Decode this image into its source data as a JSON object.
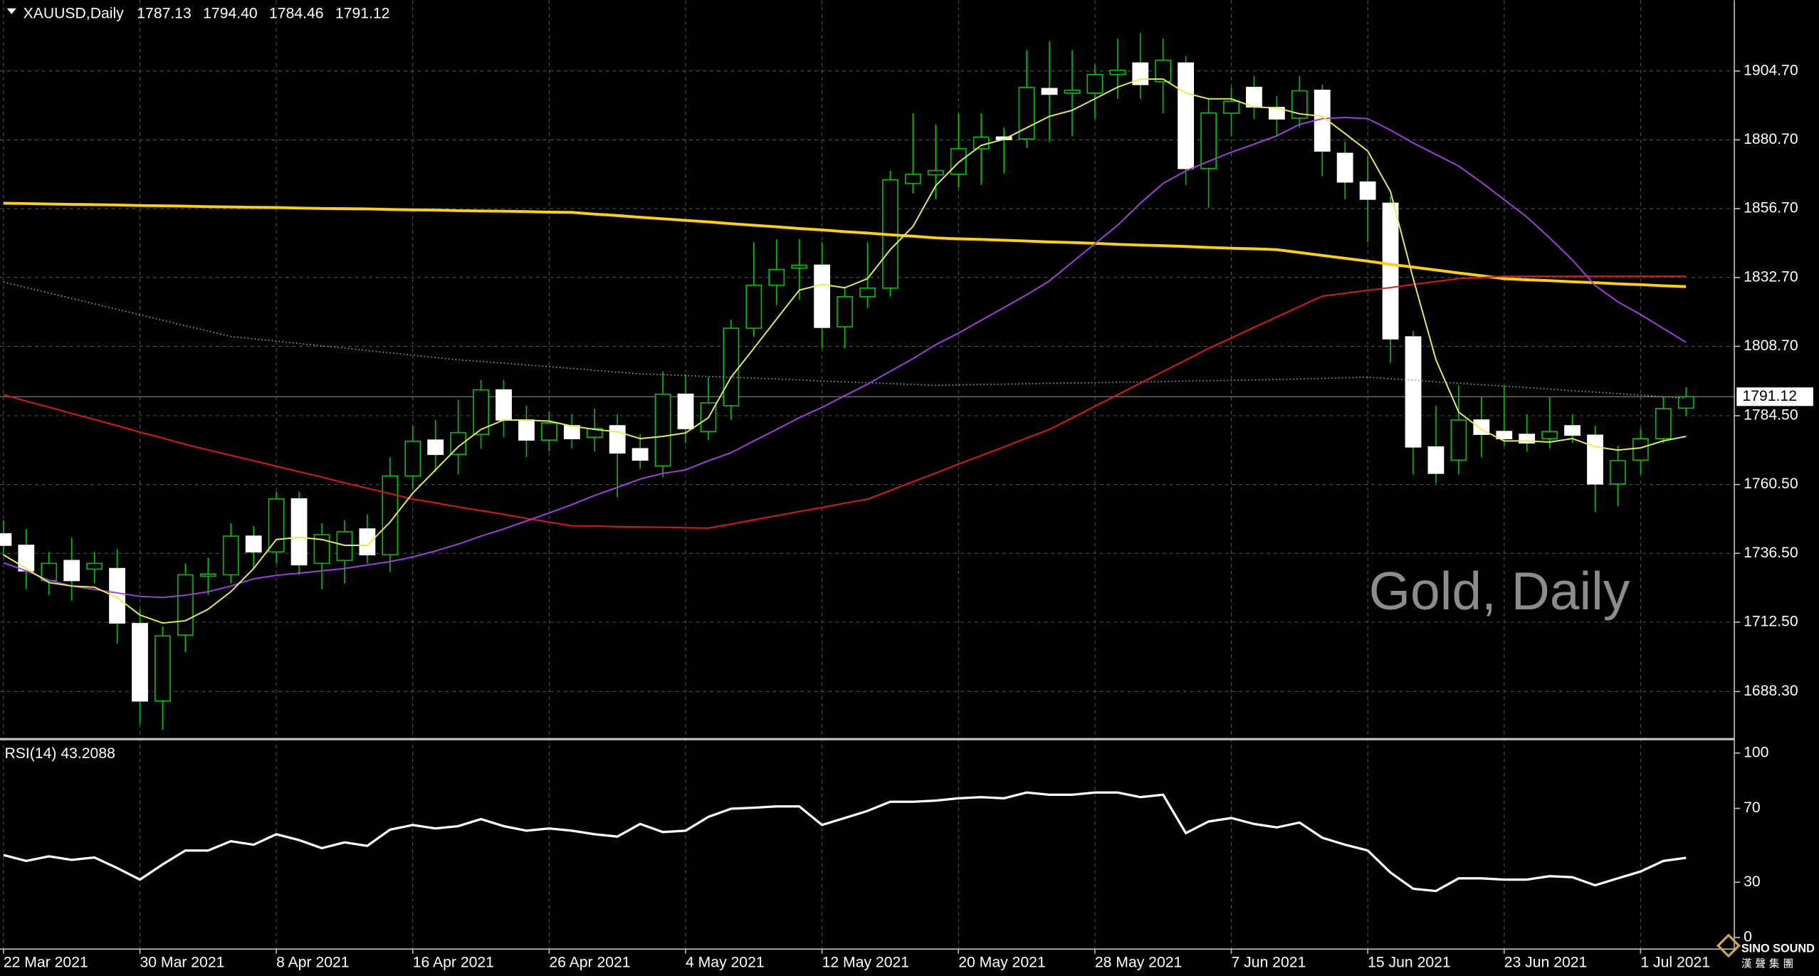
{
  "chart_data": [
    {
      "type": "candlestick",
      "title": "XAUUSD,Daily",
      "header_values": [
        "1787.13",
        "1794.40",
        "1784.46",
        "1791.12"
      ],
      "watermark": "Gold, Daily",
      "categories": [
        "22 Mar 2021",
        null,
        null,
        null,
        null,
        null,
        "30 Mar 2021",
        null,
        null,
        null,
        null,
        null,
        "8 Apr 2021",
        null,
        null,
        null,
        null,
        null,
        "16 Apr 2021",
        null,
        null,
        null,
        null,
        null,
        "26 Apr 2021",
        null,
        null,
        null,
        null,
        null,
        "4 May 2021",
        null,
        null,
        null,
        null,
        null,
        "12 May 2021",
        null,
        null,
        null,
        null,
        null,
        "20 May 2021",
        null,
        null,
        null,
        null,
        null,
        "28 May 2021",
        null,
        null,
        null,
        null,
        null,
        "7 Jun 2021",
        null,
        null,
        null,
        null,
        null,
        "15 Jun 2021",
        null,
        null,
        null,
        null,
        null,
        "23 Jun 2021",
        null,
        null,
        null,
        null,
        null,
        "1 Jul 2021",
        null,
        null
      ],
      "open": [
        1743.3,
        1739.3,
        1727.0,
        1734.0,
        1731.0,
        1731.2,
        1712.0,
        1685.0,
        1708.0,
        1728.5,
        1729.0,
        1742.5,
        1737.0,
        1755.5,
        1733.0,
        1734.0,
        1745.0,
        1736.0,
        1763.5,
        1776.0,
        1771.0,
        1778.0,
        1793.5,
        1783.0,
        1776.0,
        1781.0,
        1777.0,
        1781.0,
        1773.0,
        1767.0,
        1792.0,
        1779.0,
        1788.0,
        1815.0,
        1830.0,
        1836.0,
        1837.0,
        1815.5,
        1826.0,
        1829.0,
        1865.5,
        1868.5,
        1868.7,
        1877.6,
        1881.7,
        1881.0,
        1898.6,
        1897.0,
        1897.0,
        1903.5,
        1907.5,
        1901.0,
        1907.5,
        1870.7,
        1890.0,
        1899.0,
        1892.0,
        1888.3,
        1898.0,
        1876.0,
        1866.0,
        1858.6,
        1812.0,
        1773.6,
        1769.0,
        1783.0,
        1779.0,
        1778.0,
        1776.5,
        1781.0,
        1777.7,
        1760.7,
        1769.0,
        1776.5,
        1787.13
      ],
      "high": [
        1748.0,
        1745.0,
        1737.0,
        1742.0,
        1737.0,
        1738.0,
        1717.0,
        1711.0,
        1733.0,
        1735.0,
        1747.0,
        1746.0,
        1758.0,
        1758.0,
        1747.0,
        1748.0,
        1750.0,
        1770.0,
        1781.0,
        1783.0,
        1790.0,
        1797.0,
        1797.0,
        1788.0,
        1786.0,
        1785.0,
        1787.0,
        1785.0,
        1778.0,
        1800.0,
        1799.0,
        1798.0,
        1818.0,
        1845.0,
        1846.0,
        1846.0,
        1845.0,
        1829.0,
        1845.0,
        1870.0,
        1890.0,
        1886.0,
        1890.0,
        1890.0,
        1885.0,
        1912.0,
        1915.0,
        1912.0,
        1907.0,
        1916.0,
        1918.0,
        1916.0,
        1910.0,
        1895.0,
        1899.0,
        1903.0,
        1896.0,
        1903.0,
        1900.0,
        1880.0,
        1875.0,
        1861.0,
        1814.0,
        1788.0,
        1795.0,
        1791.0,
        1795.0,
        1785.0,
        1791.0,
        1785.0,
        1781.0,
        1774.0,
        1780.0,
        1791.0,
        1794.4
      ],
      "low": [
        1735.5,
        1724.0,
        1722.0,
        1720.0,
        1726.0,
        1705.0,
        1677.0,
        1675.0,
        1702.0,
        1722.0,
        1726.0,
        1731.0,
        1733.0,
        1729.0,
        1724.0,
        1726.0,
        1733.0,
        1730.0,
        1759.0,
        1765.0,
        1764.0,
        1773.0,
        1777.0,
        1770.0,
        1772.0,
        1773.0,
        1772.0,
        1756.0,
        1766.0,
        1763.0,
        1775.0,
        1776.0,
        1783.0,
        1812.0,
        1823.0,
        1825.0,
        1808.0,
        1808.0,
        1822.0,
        1826.0,
        1862.0,
        1860.0,
        1864.0,
        1865.0,
        1869.0,
        1878.0,
        1880.0,
        1882.0,
        1888.0,
        1895.0,
        1895.0,
        1890.0,
        1865.0,
        1857.0,
        1882.0,
        1888.0,
        1882.0,
        1885.0,
        1868.0,
        1860.0,
        1845.0,
        1803.0,
        1764.0,
        1761.0,
        1764.0,
        1770.0,
        1774.0,
        1772.0,
        1773.0,
        1775.0,
        1751.0,
        1753.0,
        1764.0,
        1775.0,
        1784.46
      ],
      "close": [
        1739.3,
        1730.4,
        1733.0,
        1727.0,
        1733.0,
        1712.2,
        1685.0,
        1707.7,
        1729.0,
        1729.3,
        1742.5,
        1737.0,
        1755.5,
        1732.5,
        1743.0,
        1744.0,
        1736.0,
        1763.5,
        1775.6,
        1771.0,
        1778.6,
        1793.5,
        1783.0,
        1776.0,
        1782.0,
        1776.5,
        1780.0,
        1771.5,
        1769.0,
        1792.0,
        1780.0,
        1789.0,
        1815.0,
        1830.0,
        1835.5,
        1837.0,
        1815.3,
        1826.0,
        1829.0,
        1866.8,
        1868.7,
        1870.0,
        1877.6,
        1881.7,
        1880.8,
        1899.0,
        1896.6,
        1898.0,
        1903.5,
        1905.0,
        1900.0,
        1908.5,
        1870.7,
        1890.1,
        1894.2,
        1892.2,
        1888.0,
        1897.8,
        1876.8,
        1866.0,
        1860.0,
        1811.3,
        1773.6,
        1764.4,
        1783.0,
        1778.0,
        1776.5,
        1775.0,
        1779.0,
        1777.7,
        1760.7,
        1768.8,
        1776.5,
        1787.0,
        1791.12
      ],
      "up_color": "#000000",
      "down_color": "#ffffff",
      "wick_color": "#00c000",
      "series": [
        {
          "color": "#9a9a9a",
          "dashed": true,
          "values": [
            1831.1,
            1829.2,
            1827.3,
            1825.4,
            1823.5,
            1821.6,
            1819.7,
            1817.8,
            1815.9,
            1814.0,
            1812.1,
            1811.3,
            1810.5,
            1809.7,
            1808.9,
            1808.1,
            1807.2,
            1806.4,
            1805.6,
            1804.8,
            1804.0,
            1803.4,
            1802.8,
            1802.2,
            1801.6,
            1801.0,
            1800.3,
            1799.7,
            1799.1,
            1798.8,
            1798.5,
            1798.2,
            1797.9,
            1797.6,
            1797.3,
            1797.0,
            1796.6,
            1796.3,
            1796.0,
            1795.7,
            1795.4,
            1795.1,
            1795.2,
            1795.4,
            1795.5,
            1795.6,
            1795.8,
            1795.9,
            1796.0,
            1796.2,
            1796.3,
            1796.4,
            1796.6,
            1796.7,
            1796.8,
            1797.0,
            1797.1,
            1797.3,
            1797.5,
            1797.7,
            1797.9,
            1797.4,
            1796.9,
            1796.3,
            1795.8,
            1795.3,
            1794.8,
            1794.3,
            1793.8,
            1793.2,
            1792.7,
            1792.2,
            1791.7,
            1791.1,
            1790.6
          ]
        },
        {
          "color": "#ffd200",
          "dashed": false,
          "values": [
            1858.6,
            1858.5,
            1858.3,
            1858.2,
            1858.1,
            1858.0,
            1857.8,
            1857.7,
            1857.6,
            1857.4,
            1857.3,
            1857.2,
            1857.1,
            1856.9,
            1856.8,
            1856.7,
            1856.6,
            1856.4,
            1856.3,
            1856.2,
            1856.0,
            1855.9,
            1855.8,
            1855.7,
            1855.5,
            1855.4,
            1854.8,
            1854.3,
            1853.7,
            1853.2,
            1852.6,
            1852.1,
            1851.5,
            1850.9,
            1850.4,
            1849.8,
            1849.3,
            1848.7,
            1848.2,
            1847.6,
            1847.1,
            1846.5,
            1846.2,
            1846.0,
            1845.7,
            1845.4,
            1845.1,
            1844.9,
            1844.6,
            1844.3,
            1844.0,
            1843.8,
            1843.5,
            1843.2,
            1842.9,
            1842.7,
            1842.4,
            1841.4,
            1840.4,
            1839.4,
            1838.4,
            1837.3,
            1836.3,
            1835.3,
            1834.3,
            1833.3,
            1832.3,
            1831.9,
            1831.6,
            1831.2,
            1830.9,
            1830.5,
            1830.2,
            1829.8,
            1829.5
          ]
        },
        {
          "color": "#e01818",
          "dashed": false,
          "values": [
            1791.8,
            1789.6,
            1787.5,
            1785.3,
            1783.2,
            1781.0,
            1778.8,
            1776.7,
            1774.5,
            1772.6,
            1770.7,
            1768.8,
            1766.9,
            1765.0,
            1763.1,
            1761.1,
            1759.2,
            1757.3,
            1755.4,
            1754.1,
            1752.7,
            1751.4,
            1750.1,
            1748.7,
            1747.4,
            1746.1,
            1746.0,
            1745.8,
            1745.7,
            1745.6,
            1745.4,
            1745.3,
            1746.7,
            1748.2,
            1749.6,
            1751.1,
            1752.5,
            1754.0,
            1755.4,
            1758.4,
            1761.5,
            1764.5,
            1767.6,
            1770.6,
            1773.6,
            1776.7,
            1779.7,
            1783.7,
            1787.8,
            1791.8,
            1795.9,
            1799.9,
            1803.9,
            1808.0,
            1811.6,
            1815.3,
            1818.9,
            1822.6,
            1826.2,
            1827.2,
            1828.2,
            1829.2,
            1830.3,
            1831.3,
            1832.3,
            1832.7,
            1833.1,
            1833.1,
            1833.1,
            1833.1,
            1833.1,
            1833.1,
            1833.1,
            1833.1,
            1833.1
          ]
        },
        {
          "color": "#a040e0",
          "dashed": false,
          "values": [
            1733.2,
            1730.4,
            1727.1,
            1725.1,
            1723.9,
            1722.7,
            1721.5,
            1721.1,
            1721.9,
            1723.1,
            1725.1,
            1727.6,
            1728.8,
            1729.6,
            1730.4,
            1731.2,
            1732.4,
            1733.6,
            1735.2,
            1737.3,
            1739.7,
            1742.5,
            1745.0,
            1747.8,
            1750.6,
            1753.5,
            1756.7,
            1759.5,
            1762.4,
            1764.4,
            1765.6,
            1768.8,
            1771.6,
            1775.7,
            1779.7,
            1783.8,
            1787.4,
            1791.5,
            1795.5,
            1800.0,
            1804.4,
            1809.3,
            1813.3,
            1817.8,
            1822.2,
            1826.7,
            1831.5,
            1838.0,
            1844.5,
            1850.9,
            1858.6,
            1865.5,
            1869.9,
            1873.2,
            1876.4,
            1879.2,
            1882.1,
            1886.1,
            1888.1,
            1888.5,
            1888.1,
            1884.1,
            1879.6,
            1875.6,
            1871.6,
            1865.9,
            1859.8,
            1853.8,
            1846.5,
            1838.8,
            1829.9,
            1824.2,
            1819.8,
            1814.9,
            1810.1
          ]
        },
        {
          "color": "#e4f050",
          "dashed": false,
          "values": [
            1736.0,
            1731.2,
            1726.3,
            1725.1,
            1724.7,
            1721.1,
            1715.0,
            1712.2,
            1713.0,
            1717.0,
            1723.1,
            1731.2,
            1741.3,
            1742.1,
            1741.3,
            1739.3,
            1739.3,
            1747.4,
            1757.5,
            1765.6,
            1773.7,
            1779.7,
            1783.0,
            1783.0,
            1782.6,
            1780.9,
            1779.7,
            1778.9,
            1776.5,
            1777.3,
            1778.5,
            1783.8,
            1797.9,
            1808.0,
            1818.2,
            1828.3,
            1830.3,
            1829.1,
            1832.3,
            1842.4,
            1850.5,
            1864.7,
            1872.8,
            1878.8,
            1880.9,
            1884.9,
            1888.9,
            1891.0,
            1895.0,
            1899.1,
            1901.9,
            1901.9,
            1897.0,
            1895.0,
            1895.0,
            1892.2,
            1891.8,
            1889.8,
            1888.9,
            1882.9,
            1876.8,
            1862.7,
            1832.3,
            1804.0,
            1785.8,
            1779.7,
            1775.7,
            1775.7,
            1775.3,
            1776.5,
            1773.7,
            1772.5,
            1773.3,
            1775.7,
            1777.3
          ]
        }
      ],
      "current_price": 1791.12,
      "ylim": [
        1672.1,
        1929.4
      ],
      "yticks": [
        {
          "value": 1904.7,
          "label": "1904.70"
        },
        {
          "value": 1880.7,
          "label": "1880.70"
        },
        {
          "value": 1856.7,
          "label": "1856.70"
        },
        {
          "value": 1832.7,
          "label": "1832.70"
        },
        {
          "value": 1808.7,
          "label": "1808.70"
        },
        {
          "value": 1784.5,
          "label": "1784.50"
        },
        {
          "value": 1760.5,
          "label": "1760.50"
        },
        {
          "value": 1736.5,
          "label": "1736.50"
        },
        {
          "value": 1712.5,
          "label": "1712.50"
        },
        {
          "value": 1688.3,
          "label": "1688.30"
        }
      ],
      "grid": true
    },
    {
      "type": "line",
      "title": "RSI(14) 43.2088",
      "series": [
        {
          "color": "#ffffff",
          "values": [
            44.7,
            41.5,
            44.0,
            42.1,
            43.4,
            37.7,
            31.4,
            39.6,
            47.2,
            47.2,
            52.2,
            50.3,
            56.0,
            52.8,
            48.4,
            51.6,
            49.7,
            58.5,
            61.0,
            59.1,
            60.4,
            64.2,
            60.4,
            57.9,
            59.1,
            57.9,
            56.0,
            54.7,
            61.6,
            57.2,
            57.9,
            65.4,
            69.8,
            70.4,
            71.1,
            71.1,
            61.0,
            64.8,
            68.6,
            73.6,
            73.6,
            74.2,
            75.5,
            76.1,
            75.5,
            78.6,
            77.4,
            77.4,
            78.6,
            78.6,
            76.1,
            77.4,
            56.6,
            62.9,
            64.8,
            61.6,
            59.7,
            62.3,
            54.1,
            50.3,
            47.2,
            35.2,
            26.4,
            25.2,
            32.1,
            32.1,
            31.4,
            31.4,
            33.3,
            32.7,
            28.3,
            32.1,
            35.8,
            41.5,
            43.2
          ]
        }
      ],
      "ylim": [
        0,
        100
      ],
      "yticks": [
        0,
        30,
        70,
        100
      ],
      "grid": true
    }
  ],
  "branding": {
    "name": "SINO SOUND",
    "subtitle": "漢聲集團"
  }
}
